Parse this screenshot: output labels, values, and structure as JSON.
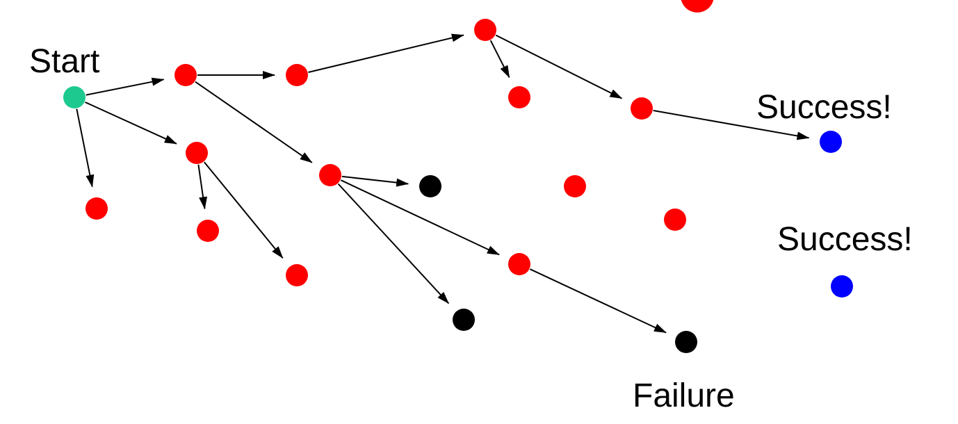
{
  "labels": {
    "start": "Start",
    "success_1": "Success!",
    "success_2": "Success!",
    "failure": "Failure"
  },
  "colors": {
    "start": "#1ec98f",
    "explored": "#ff0000",
    "success": "#0000ff",
    "failure": "#000000",
    "edge": "#000000"
  },
  "nodes": [
    {
      "id": "start",
      "kind": "start"
    },
    {
      "id": "n1",
      "kind": "explored"
    },
    {
      "id": "n2",
      "kind": "explored"
    },
    {
      "id": "n3",
      "kind": "explored"
    },
    {
      "id": "n4",
      "kind": "explored"
    },
    {
      "id": "n5",
      "kind": "explored"
    },
    {
      "id": "n6",
      "kind": "explored"
    },
    {
      "id": "n7",
      "kind": "explored"
    },
    {
      "id": "n8",
      "kind": "explored"
    },
    {
      "id": "n9",
      "kind": "explored"
    },
    {
      "id": "n10",
      "kind": "explored"
    },
    {
      "id": "n11",
      "kind": "explored"
    },
    {
      "id": "n12",
      "kind": "explored"
    },
    {
      "id": "n13",
      "kind": "explored"
    },
    {
      "id": "n14",
      "kind": "explored"
    },
    {
      "id": "top_partial",
      "kind": "explored"
    },
    {
      "id": "dead1",
      "kind": "failure"
    },
    {
      "id": "dead2",
      "kind": "failure"
    },
    {
      "id": "fail",
      "kind": "failure"
    },
    {
      "id": "succ1",
      "kind": "success"
    },
    {
      "id": "succ2",
      "kind": "success"
    }
  ],
  "edges": [
    [
      "start",
      "n1"
    ],
    [
      "start",
      "n2"
    ],
    [
      "start",
      "n3"
    ],
    [
      "n1",
      "n4"
    ],
    [
      "n1",
      "n5"
    ],
    [
      "n4",
      "n6"
    ],
    [
      "n6",
      "n7"
    ],
    [
      "n6",
      "n8"
    ],
    [
      "n8",
      "succ1"
    ],
    [
      "n2",
      "n9"
    ],
    [
      "n2",
      "n10"
    ],
    [
      "n5",
      "dead1"
    ],
    [
      "n5",
      "dead2"
    ],
    [
      "n5",
      "n11"
    ],
    [
      "n11",
      "fail"
    ]
  ]
}
